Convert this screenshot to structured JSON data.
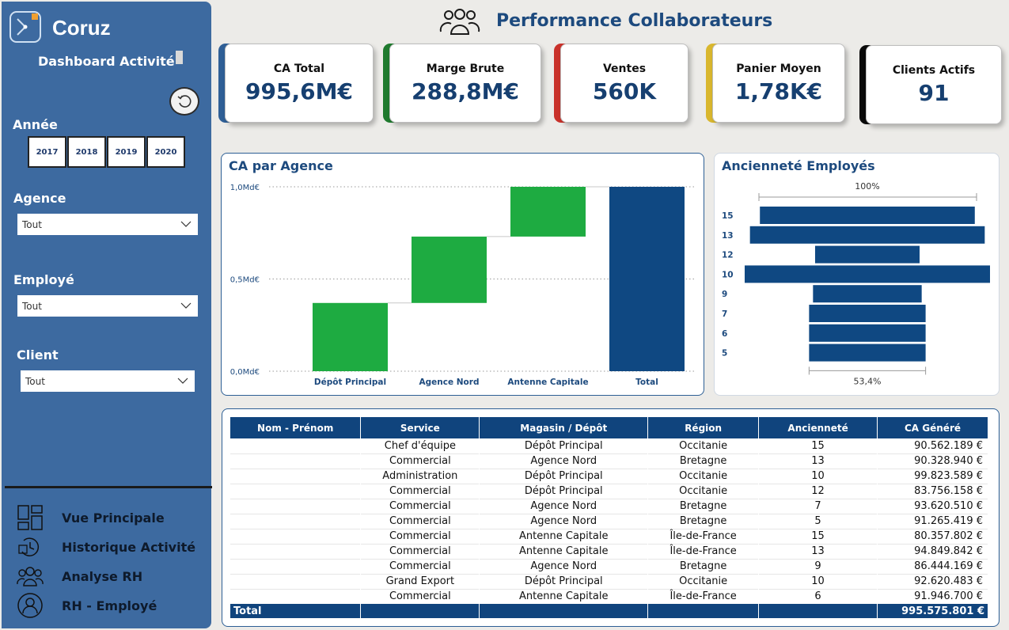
{
  "sidebar": {
    "brand": "Coruz",
    "subtitle": "Dashboard Activité",
    "filters": {
      "year_label": "Année",
      "years": [
        "2017",
        "2018",
        "2019",
        "2020"
      ],
      "agence_label": "Agence",
      "agence_value": "Tout",
      "employe_label": "Employé",
      "employe_value": "Tout",
      "client_label": "Client",
      "client_value": "Tout"
    },
    "nav": [
      {
        "label": "Vue Principale",
        "icon": "layout-icon"
      },
      {
        "label": "Historique Activité",
        "icon": "history-icon"
      },
      {
        "label": "Analyse RH",
        "icon": "team-icon"
      },
      {
        "label": "RH - Employé",
        "icon": "user-icon"
      }
    ]
  },
  "header": {
    "title": "Performance Collaborateurs",
    "icon": "team-icon"
  },
  "kpis": [
    {
      "label": "CA Total",
      "value": "995,6M€",
      "color": "#2f5f96"
    },
    {
      "label": "Marge Brute",
      "value": "288,8M€",
      "color": "#1f7a2e"
    },
    {
      "label": "Ventes",
      "value": "560K",
      "color": "#c9312a"
    },
    {
      "label": "Panier Moyen",
      "value": "1,78K€",
      "color": "#d9b72e"
    },
    {
      "label": "Clients Actifs",
      "value": "91",
      "color": "#0a0a0a"
    }
  ],
  "chart_data": [
    {
      "type": "bar",
      "title": "CA par Agence",
      "categories": [
        "Dépôt Principal",
        "Agence Nord",
        "Antenne Capitale",
        "Total"
      ],
      "waterfall": true,
      "values": [
        0.37,
        0.36,
        0.27,
        1.0
      ],
      "y_ticks": [
        "0,0Md€",
        "0,5Md€",
        "1,0Md€"
      ],
      "ylim": [
        0,
        1.0
      ],
      "colors": {
        "increase": "#1eab41",
        "total": "#0f4882"
      }
    },
    {
      "type": "bar",
      "title": "Ancienneté Employés",
      "categories": [
        "15",
        "13",
        "12",
        "10",
        "9",
        "7",
        "6",
        "5"
      ],
      "values": [
        87.6,
        95.7,
        42.6,
        100,
        44.3,
        47.5,
        47.5,
        47.5
      ],
      "top_label": "100%",
      "bottom_label": "53,4%",
      "color": "#0f4882"
    }
  ],
  "table": {
    "columns": [
      "Nom - Prénom",
      "Service",
      "Magasin / Dépôt",
      "Région",
      "Ancienneté",
      "CA Généré"
    ],
    "rows": [
      [
        "",
        "Chef d'équipe",
        "Dépôt Principal",
        "Occitanie",
        "15",
        "90.562.189 €"
      ],
      [
        "",
        "Commercial",
        "Agence Nord",
        "Bretagne",
        "13",
        "90.328.940 €"
      ],
      [
        "",
        "Administration",
        "Dépôt Principal",
        "Occitanie",
        "10",
        "99.823.589 €"
      ],
      [
        "",
        "Commercial",
        "Dépôt Principal",
        "Occitanie",
        "12",
        "83.756.158 €"
      ],
      [
        "",
        "Commercial",
        "Agence Nord",
        "Bretagne",
        "7",
        "93.620.510 €"
      ],
      [
        "",
        "Commercial",
        "Agence Nord",
        "Bretagne",
        "5",
        "91.265.419 €"
      ],
      [
        "",
        "Commercial",
        "Antenne Capitale",
        "Île-de-France",
        "15",
        "80.357.802 €"
      ],
      [
        "",
        "Commercial",
        "Antenne Capitale",
        "Île-de-France",
        "13",
        "94.849.842 €"
      ],
      [
        "",
        "Commercial",
        "Agence Nord",
        "Bretagne",
        "9",
        "86.444.169 €"
      ],
      [
        "",
        "Grand Export",
        "Dépôt Principal",
        "Occitanie",
        "10",
        "92.620.483 €"
      ],
      [
        "",
        "Commercial",
        "Antenne Capitale",
        "Île-de-France",
        "6",
        "91.946.700 €"
      ]
    ],
    "total_label": "Total",
    "total_value": "995.575.801 €"
  }
}
